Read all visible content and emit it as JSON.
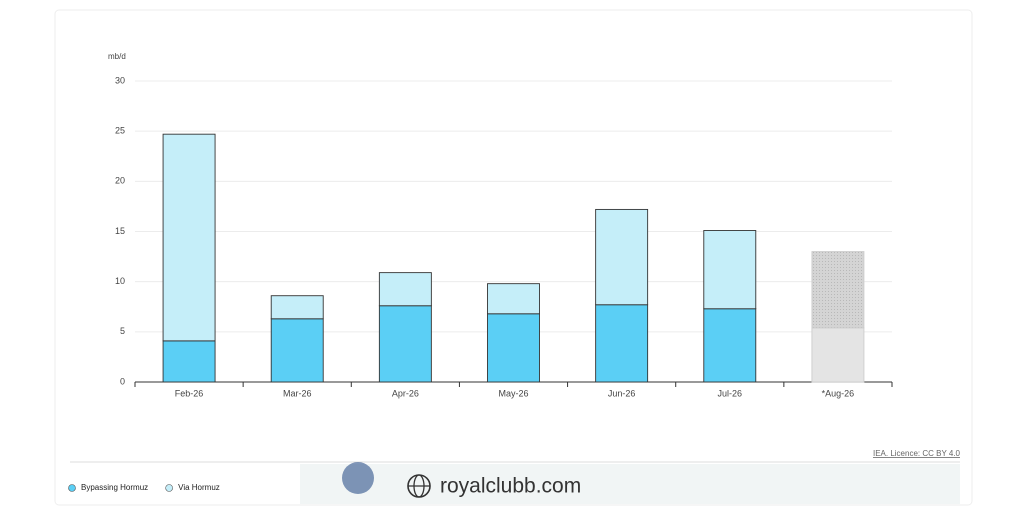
{
  "chart_data": {
    "type": "stacked_bar",
    "unit_label": "mb/d",
    "categories": [
      "Feb-26",
      "Mar-26",
      "Apr-26",
      "May-26",
      "Jun-26",
      "Jul-26",
      "*Aug-26"
    ],
    "series": [
      {
        "name": "Bypassing Hormuz",
        "color": "#5bcff5",
        "colors": [
          "#5bcff5",
          "#5bcff5",
          "#5bcff5",
          "#5bcff5",
          "#5bcff5",
          "#5bcff5",
          "#e4e4e4"
        ],
        "values": [
          4.1,
          6.3,
          7.6,
          6.8,
          7.7,
          7.3,
          5.4
        ]
      },
      {
        "name": "Via Hormuz",
        "color": "#c5eef9",
        "colors": [
          "#c5eef9",
          "#c5eef9",
          "#c5eef9",
          "#c5eef9",
          "#c5eef9",
          "#c5eef9",
          "#cccccc"
        ],
        "values": [
          20.6,
          2.3,
          3.3,
          3.0,
          9.5,
          7.8,
          7.6
        ]
      }
    ],
    "ylim": [
      0,
      30
    ],
    "yticks": [
      0,
      5,
      10,
      15,
      20,
      25,
      30
    ],
    "grid": true,
    "source": "IEA. Licence: CC BY 4.0",
    "watermark": "royalclubb.com",
    "legend": "bottom-left"
  }
}
